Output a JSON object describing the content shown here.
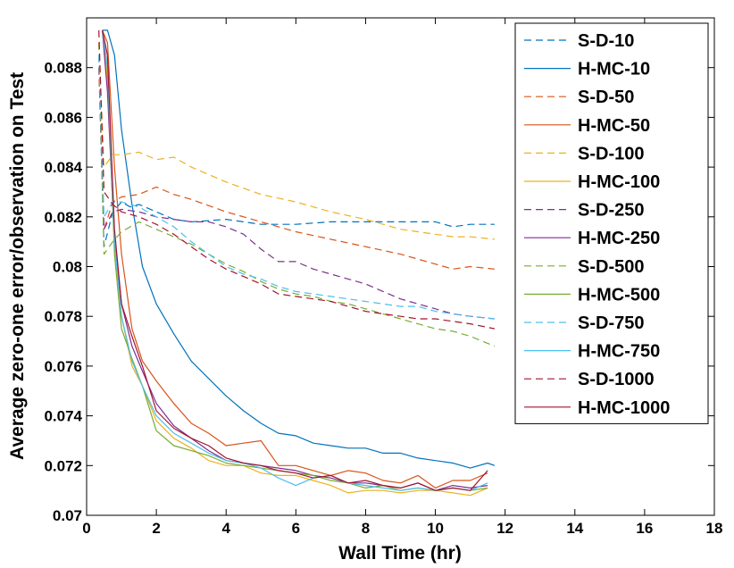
{
  "chart_data": {
    "type": "line",
    "title": "",
    "xlabel": "Wall Time (hr)",
    "ylabel": "Average zero-one error/observation on Test",
    "xlim": [
      0,
      18
    ],
    "ylim": [
      0.07,
      0.09
    ],
    "xticks": [
      0,
      2,
      4,
      6,
      8,
      10,
      12,
      14,
      16,
      18
    ],
    "xtick_labels": [
      "0",
      "2",
      "4",
      "6",
      "8",
      "10",
      "12",
      "14",
      "16",
      "18"
    ],
    "yticks": [
      0.07,
      0.072,
      0.074,
      0.076,
      0.078,
      0.08,
      0.082,
      0.084,
      0.086,
      0.088
    ],
    "ytick_labels": [
      "0.07",
      "0.072",
      "0.074",
      "0.076",
      "0.078",
      "0.08",
      "0.082",
      "0.084",
      "0.086",
      "0.088"
    ],
    "grid": false,
    "legend_position": "top-right",
    "series": [
      {
        "name": "S-D-10",
        "color": "#0072BD",
        "dash": "dashed",
        "x": [
          0.35,
          0.5,
          0.75,
          1.0,
          1.25,
          1.5,
          2.0,
          2.5,
          3.0,
          4.0,
          5.0,
          6.0,
          7.0,
          8.0,
          9.0,
          10.0,
          10.5,
          11.0,
          11.3,
          11.7
        ],
        "y": [
          0.088,
          0.0808,
          0.0822,
          0.0826,
          0.0824,
          0.0825,
          0.0822,
          0.0819,
          0.0818,
          0.0819,
          0.0817,
          0.0817,
          0.0818,
          0.0818,
          0.0818,
          0.0818,
          0.0816,
          0.0817,
          0.0817,
          0.0817
        ]
      },
      {
        "name": "H-MC-10",
        "color": "#0072BD",
        "dash": "solid",
        "x": [
          0.45,
          0.6,
          0.8,
          1.0,
          1.3,
          1.6,
          2.0,
          2.5,
          3.0,
          3.5,
          4.0,
          4.5,
          5.0,
          5.5,
          6.0,
          6.5,
          7.0,
          7.5,
          8.0,
          8.5,
          9.0,
          9.5,
          10.0,
          10.5,
          11.0,
          11.5,
          11.7
        ],
        "y": [
          0.0895,
          0.0895,
          0.0885,
          0.0855,
          0.0825,
          0.08,
          0.0785,
          0.0773,
          0.0762,
          0.0755,
          0.0748,
          0.0742,
          0.0737,
          0.0733,
          0.0732,
          0.0729,
          0.0728,
          0.0727,
          0.0727,
          0.0725,
          0.0725,
          0.0723,
          0.0722,
          0.0721,
          0.0719,
          0.0721,
          0.072
        ]
      },
      {
        "name": "S-D-50",
        "color": "#D95319",
        "dash": "dashed",
        "x": [
          0.35,
          0.5,
          0.75,
          1.0,
          1.5,
          2.0,
          2.5,
          3.0,
          4.0,
          5.0,
          6.0,
          7.0,
          8.0,
          9.0,
          10.0,
          10.5,
          11.0,
          11.7
        ],
        "y": [
          0.088,
          0.0815,
          0.0826,
          0.0828,
          0.0829,
          0.0832,
          0.0829,
          0.0827,
          0.0822,
          0.0818,
          0.0814,
          0.0811,
          0.0808,
          0.0805,
          0.0801,
          0.0799,
          0.08,
          0.0799
        ]
      },
      {
        "name": "H-MC-50",
        "color": "#D95319",
        "dash": "solid",
        "x": [
          0.45,
          0.6,
          0.8,
          1.0,
          1.3,
          1.6,
          2.0,
          2.5,
          3.0,
          3.5,
          4.0,
          4.5,
          5.0,
          5.5,
          6.0,
          6.5,
          7.0,
          7.5,
          8.0,
          8.5,
          9.0,
          9.5,
          10.0,
          10.5,
          11.0,
          11.5
        ],
        "y": [
          0.0895,
          0.089,
          0.084,
          0.0805,
          0.0775,
          0.0762,
          0.0754,
          0.0745,
          0.0737,
          0.0733,
          0.0728,
          0.0729,
          0.073,
          0.072,
          0.072,
          0.0718,
          0.0716,
          0.0718,
          0.0717,
          0.0714,
          0.0713,
          0.0716,
          0.0711,
          0.0714,
          0.0714,
          0.0717
        ]
      },
      {
        "name": "S-D-100",
        "color": "#EDB120",
        "dash": "dashed",
        "x": [
          0.35,
          0.5,
          0.75,
          1.0,
          1.5,
          2.0,
          2.5,
          3.0,
          4.0,
          5.0,
          6.0,
          7.0,
          8.0,
          9.0,
          10.0,
          10.5,
          11.0,
          11.7
        ],
        "y": [
          0.089,
          0.084,
          0.0845,
          0.0845,
          0.0846,
          0.0843,
          0.0844,
          0.084,
          0.0834,
          0.0829,
          0.0826,
          0.0822,
          0.0819,
          0.0815,
          0.0813,
          0.0812,
          0.0812,
          0.0811
        ]
      },
      {
        "name": "H-MC-100",
        "color": "#EDB120",
        "dash": "solid",
        "x": [
          0.45,
          0.6,
          0.8,
          1.0,
          1.3,
          1.6,
          2.0,
          2.5,
          3.0,
          3.5,
          4.0,
          4.5,
          5.0,
          5.5,
          6.0,
          6.5,
          7.0,
          7.5,
          8.0,
          8.5,
          9.0,
          9.5,
          10.0,
          10.5,
          11.0,
          11.5
        ],
        "y": [
          0.0895,
          0.0875,
          0.081,
          0.078,
          0.076,
          0.0752,
          0.0738,
          0.0731,
          0.0727,
          0.0722,
          0.072,
          0.072,
          0.0717,
          0.0716,
          0.0716,
          0.0714,
          0.0712,
          0.0709,
          0.071,
          0.071,
          0.0709,
          0.071,
          0.071,
          0.0709,
          0.0708,
          0.0711
        ]
      },
      {
        "name": "S-D-250",
        "color": "#7E2F8E",
        "dash": "dashed",
        "x": [
          0.35,
          0.5,
          0.75,
          1.0,
          1.5,
          2.0,
          2.5,
          3.0,
          3.5,
          4.0,
          4.5,
          5.0,
          5.5,
          6.0,
          6.5,
          7.0,
          7.5,
          8.0,
          8.5,
          9.0,
          9.5,
          10.0,
          10.5,
          11.0,
          11.7
        ],
        "y": [
          0.0885,
          0.0815,
          0.0822,
          0.0823,
          0.0822,
          0.082,
          0.0819,
          0.0818,
          0.0818,
          0.0816,
          0.0813,
          0.0807,
          0.0802,
          0.0802,
          0.0799,
          0.0797,
          0.0795,
          0.0793,
          0.079,
          0.0787,
          0.0785,
          0.0783,
          0.0781,
          0.078,
          0.0779
        ]
      },
      {
        "name": "H-MC-250",
        "color": "#7E2F8E",
        "dash": "solid",
        "x": [
          0.45,
          0.6,
          0.8,
          1.0,
          1.3,
          1.6,
          2.0,
          2.5,
          3.0,
          3.5,
          4.0,
          4.5,
          5.0,
          5.5,
          6.0,
          6.5,
          7.0,
          7.5,
          8.0,
          8.5,
          9.0,
          9.5,
          10.0,
          10.5,
          11.0,
          11.5
        ],
        "y": [
          0.0895,
          0.087,
          0.081,
          0.0785,
          0.0768,
          0.0758,
          0.0745,
          0.0736,
          0.0731,
          0.0726,
          0.0722,
          0.0721,
          0.072,
          0.0719,
          0.0718,
          0.0716,
          0.0715,
          0.0713,
          0.0713,
          0.0712,
          0.0711,
          0.0713,
          0.071,
          0.0712,
          0.0711,
          0.0712
        ]
      },
      {
        "name": "S-D-500",
        "color": "#77AC30",
        "dash": "dashed",
        "x": [
          0.35,
          0.5,
          0.75,
          1.0,
          1.5,
          2.0,
          2.5,
          3.0,
          3.5,
          4.0,
          4.5,
          5.0,
          5.5,
          6.0,
          6.5,
          7.0,
          7.5,
          8.0,
          8.5,
          9.0,
          9.5,
          10.0,
          10.5,
          11.0,
          11.7
        ],
        "y": [
          0.089,
          0.0805,
          0.081,
          0.0814,
          0.0818,
          0.0815,
          0.0812,
          0.0809,
          0.0805,
          0.0801,
          0.0798,
          0.0794,
          0.0791,
          0.0789,
          0.0788,
          0.0786,
          0.0785,
          0.0783,
          0.0781,
          0.0779,
          0.0777,
          0.0775,
          0.0774,
          0.0772,
          0.0768
        ]
      },
      {
        "name": "H-MC-500",
        "color": "#77AC30",
        "dash": "solid",
        "x": [
          0.45,
          0.6,
          0.8,
          1.0,
          1.3,
          1.6,
          2.0,
          2.5,
          3.0,
          3.5,
          4.0,
          4.5,
          5.0,
          5.5,
          6.0,
          6.5,
          7.0,
          7.5,
          8.0,
          8.5,
          9.0,
          9.5,
          10.0,
          10.5,
          11.0,
          11.5
        ],
        "y": [
          0.0895,
          0.088,
          0.0805,
          0.0775,
          0.0763,
          0.0752,
          0.0734,
          0.0728,
          0.0726,
          0.0724,
          0.0721,
          0.072,
          0.0719,
          0.0718,
          0.0717,
          0.0716,
          0.0714,
          0.0713,
          0.0711,
          0.0712,
          0.071,
          0.0711,
          0.071,
          0.0711,
          0.071,
          0.0711
        ]
      },
      {
        "name": "S-D-750",
        "color": "#4DBEEE",
        "dash": "dashed",
        "x": [
          0.35,
          0.5,
          0.75,
          1.0,
          1.5,
          2.0,
          2.5,
          3.0,
          3.5,
          4.0,
          4.5,
          5.0,
          5.5,
          6.0,
          6.5,
          7.0,
          7.5,
          8.0,
          8.5,
          9.0,
          9.5,
          10.0,
          10.5,
          11.0,
          11.7
        ],
        "y": [
          0.0885,
          0.082,
          0.0826,
          0.0826,
          0.0824,
          0.082,
          0.0816,
          0.081,
          0.0805,
          0.08,
          0.0797,
          0.0795,
          0.0792,
          0.079,
          0.0789,
          0.0788,
          0.0787,
          0.0786,
          0.0785,
          0.0784,
          0.0784,
          0.0782,
          0.0781,
          0.078,
          0.0779
        ]
      },
      {
        "name": "H-MC-750",
        "color": "#4DBEEE",
        "dash": "solid",
        "x": [
          0.45,
          0.6,
          0.8,
          1.0,
          1.3,
          1.6,
          2.0,
          2.5,
          3.0,
          3.5,
          4.0,
          4.5,
          5.0,
          5.5,
          6.0,
          6.5,
          7.0,
          7.5,
          8.0,
          8.5,
          9.0,
          9.5,
          10.0,
          10.5,
          11.0,
          11.5
        ],
        "y": [
          0.0895,
          0.088,
          0.081,
          0.078,
          0.0762,
          0.0752,
          0.074,
          0.0733,
          0.0729,
          0.0725,
          0.0722,
          0.0721,
          0.0719,
          0.0715,
          0.0712,
          0.0715,
          0.0716,
          0.0713,
          0.0712,
          0.0711,
          0.071,
          0.0711,
          0.071,
          0.0711,
          0.071,
          0.0713
        ]
      },
      {
        "name": "S-D-1000",
        "color": "#A2142F",
        "dash": "dashed",
        "x": [
          0.35,
          0.5,
          0.75,
          1.0,
          1.5,
          2.0,
          2.5,
          3.0,
          3.5,
          4.0,
          4.5,
          5.0,
          5.5,
          6.0,
          6.5,
          7.0,
          7.5,
          8.0,
          8.5,
          9.0,
          9.5,
          10.0,
          10.5,
          11.0,
          11.7
        ],
        "y": [
          0.0895,
          0.083,
          0.0825,
          0.0822,
          0.082,
          0.0817,
          0.0813,
          0.0808,
          0.0803,
          0.0799,
          0.0796,
          0.0793,
          0.0789,
          0.0788,
          0.0787,
          0.0786,
          0.0784,
          0.0782,
          0.0781,
          0.078,
          0.0779,
          0.0779,
          0.0778,
          0.0777,
          0.0775
        ]
      },
      {
        "name": "H-MC-1000",
        "color": "#A2142F",
        "dash": "solid",
        "x": [
          0.45,
          0.6,
          0.8,
          1.0,
          1.3,
          1.6,
          2.0,
          2.5,
          3.0,
          3.5,
          4.0,
          4.5,
          5.0,
          5.5,
          6.0,
          6.5,
          7.0,
          7.5,
          8.0,
          8.5,
          9.0,
          9.5,
          10.0,
          10.5,
          11.0,
          11.5
        ],
        "y": [
          0.0895,
          0.0885,
          0.0815,
          0.0785,
          0.0772,
          0.076,
          0.0742,
          0.0735,
          0.0731,
          0.0728,
          0.0723,
          0.0721,
          0.072,
          0.0718,
          0.0717,
          0.0715,
          0.0716,
          0.0713,
          0.0714,
          0.0712,
          0.0711,
          0.0713,
          0.071,
          0.0711,
          0.071,
          0.0718
        ]
      }
    ]
  }
}
